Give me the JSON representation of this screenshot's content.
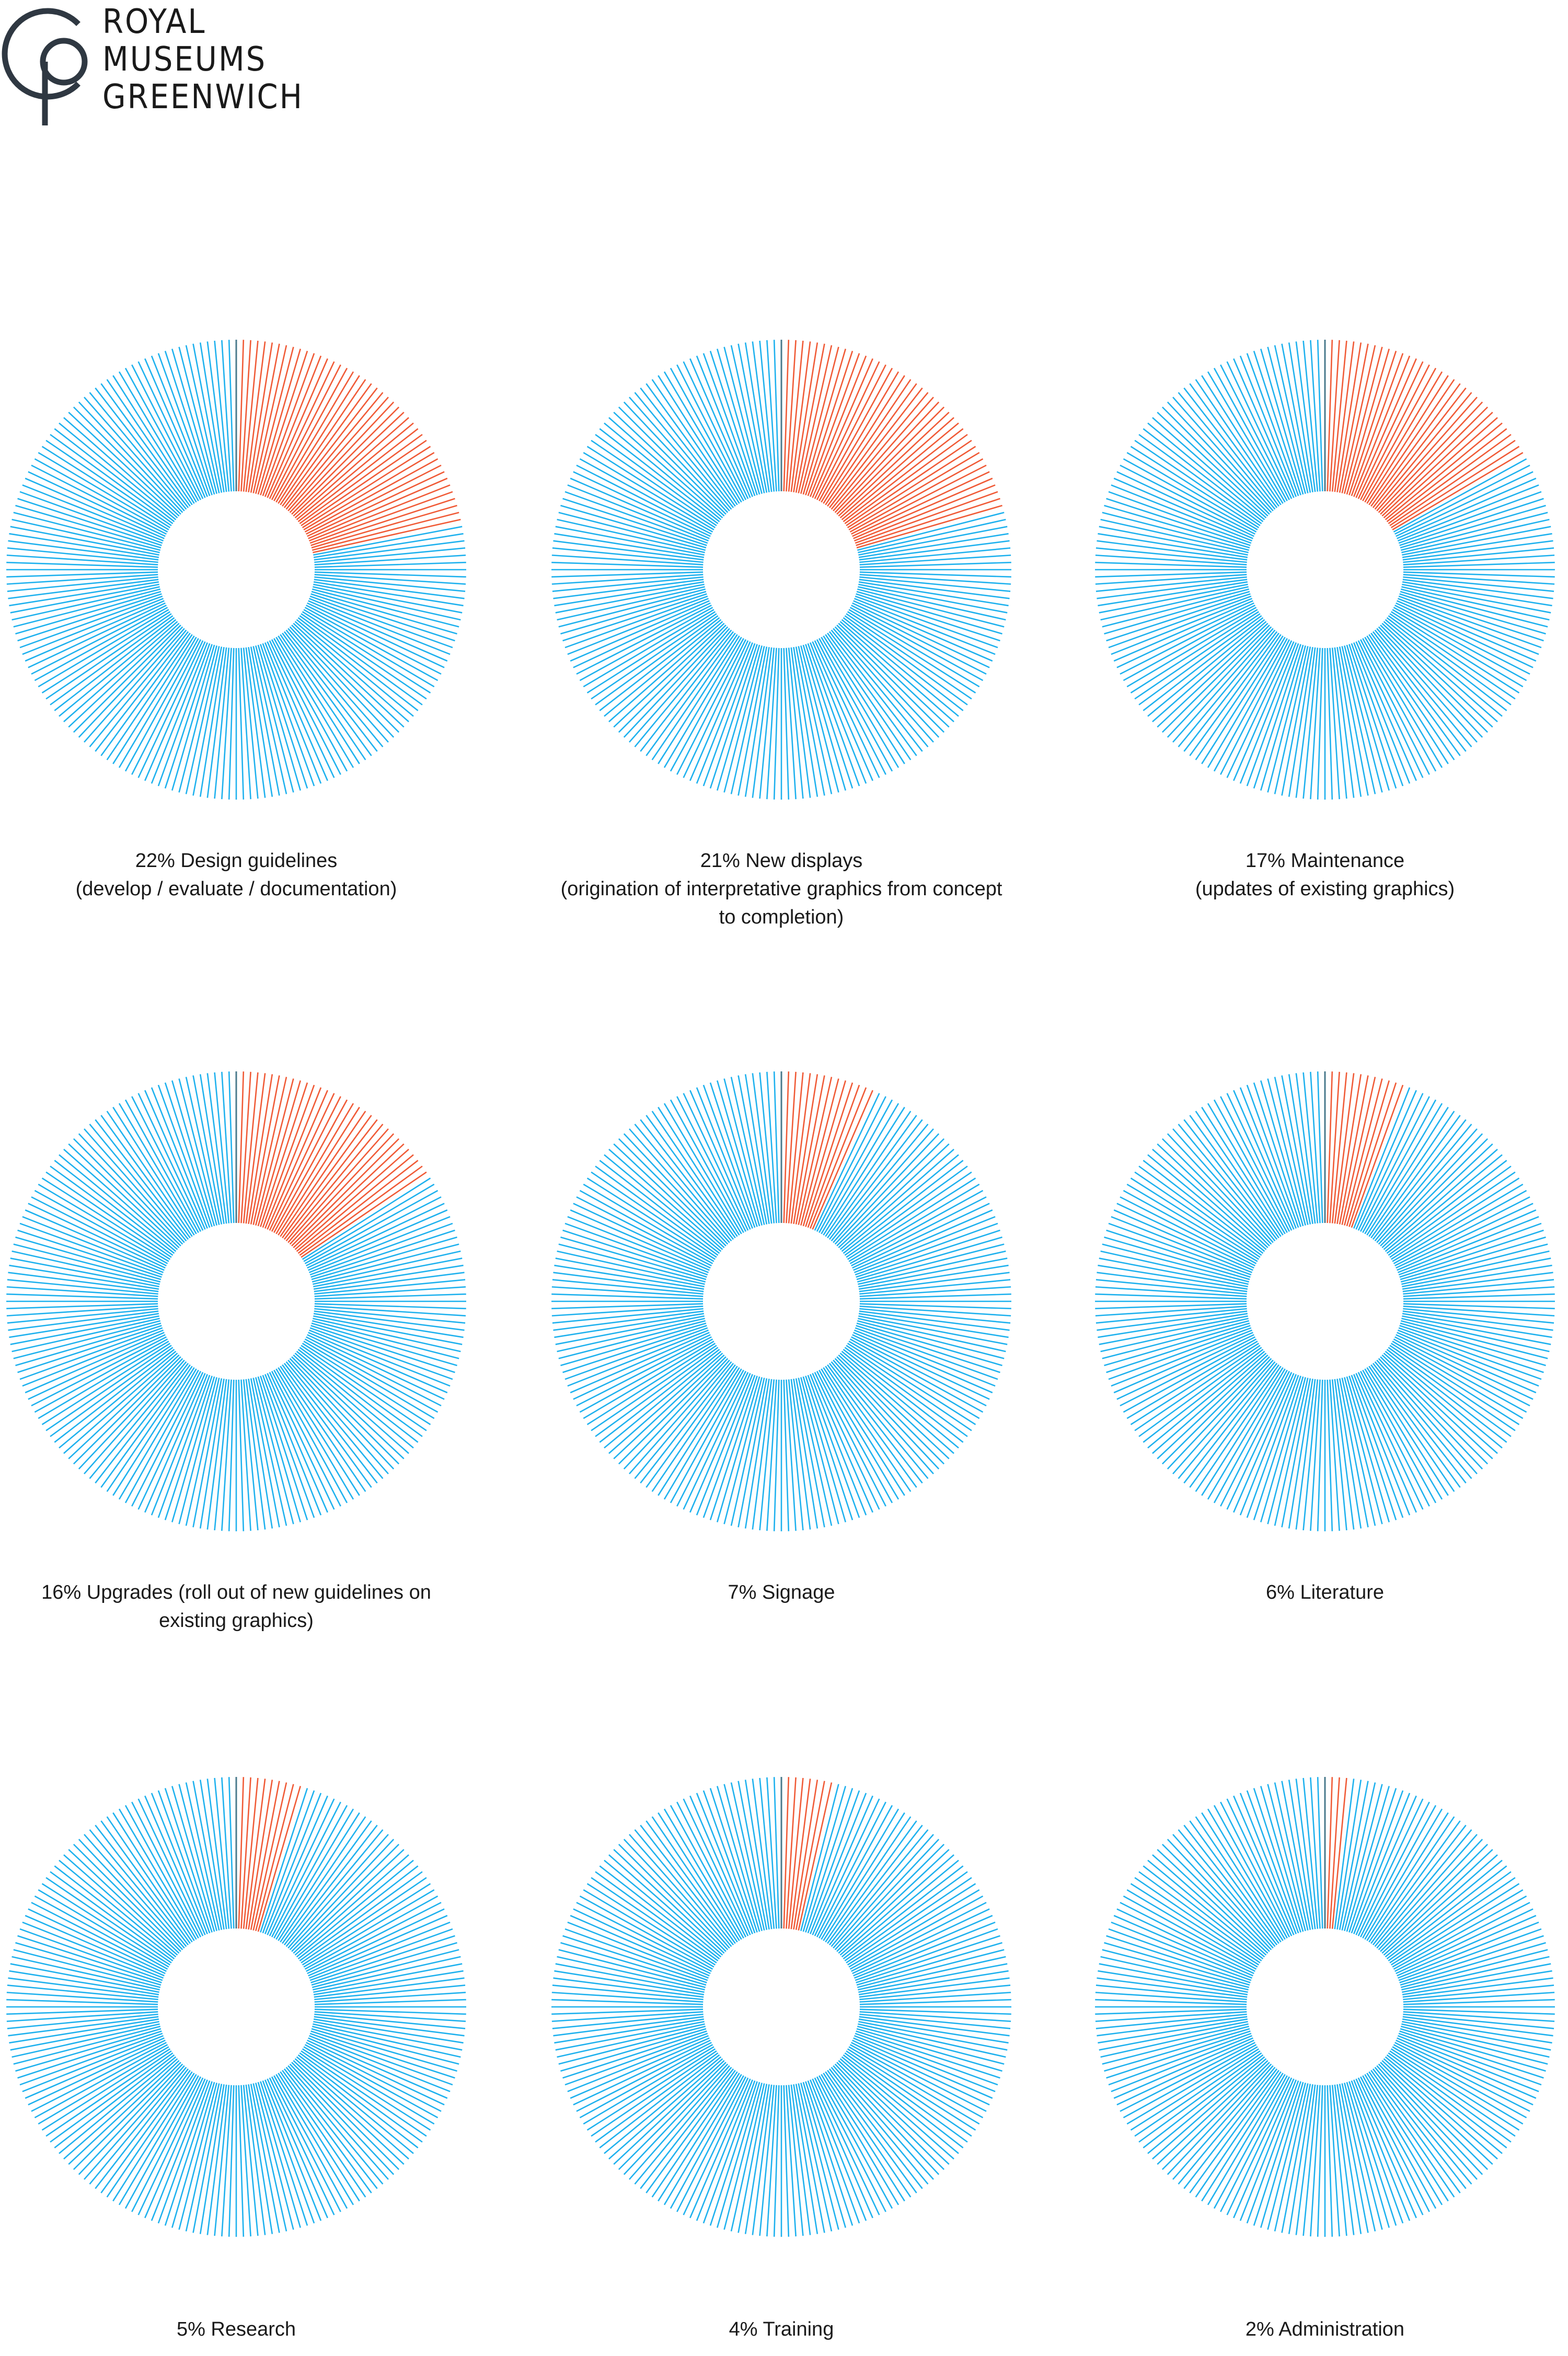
{
  "brand": {
    "line1": "ROYAL",
    "line2": "MUSEUMS",
    "line3": "GREENWICH"
  },
  "colors": {
    "highlight": "#f05a36",
    "rest": "#1eb1ee",
    "logo": "#2f3842"
  },
  "chart_data": [
    {
      "type": "donut",
      "value_percent": 22,
      "label": "22% Design guidelines",
      "sublabel": "(develop / evaluate / documentation)"
    },
    {
      "type": "donut",
      "value_percent": 21,
      "label": "21% New displays",
      "sublabel": "(origination of interpretative graphics from concept to completion)"
    },
    {
      "type": "donut",
      "value_percent": 17,
      "label": "17% Maintenance",
      "sublabel": "(updates of existing graphics)"
    },
    {
      "type": "donut",
      "value_percent": 16,
      "label": "16% Upgrades (roll out of new guidelines on existing graphics)",
      "sublabel": ""
    },
    {
      "type": "donut",
      "value_percent": 7,
      "label": "7% Signage",
      "sublabel": ""
    },
    {
      "type": "donut",
      "value_percent": 6,
      "label": "6% Literature",
      "sublabel": ""
    },
    {
      "type": "donut",
      "value_percent": 5,
      "label": "5% Research",
      "sublabel": ""
    },
    {
      "type": "donut",
      "value_percent": 4,
      "label": "4% Training",
      "sublabel": ""
    },
    {
      "type": "donut",
      "value_percent": 2,
      "label": "2% Administration",
      "sublabel": ""
    }
  ]
}
